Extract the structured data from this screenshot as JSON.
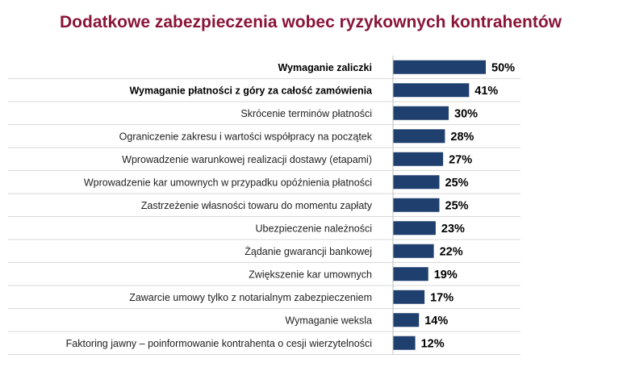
{
  "title": "Dodatkowe zabezpieczenia wobec ryzykownych kontrahentów",
  "colors": {
    "title": "#8a1538",
    "bar": "#1f3f6e",
    "grid": "#d9d9d9"
  },
  "chart_data": {
    "type": "bar",
    "orientation": "horizontal",
    "title": "Dodatkowe zabezpieczenia wobec ryzykownych kontrahentów",
    "xlabel": "",
    "ylabel": "",
    "xlim": [
      0,
      100
    ],
    "value_suffix": "%",
    "bold_categories": [
      "Wymaganie zaliczki",
      "Wymaganie płatności z góry za całość zamówienia"
    ],
    "categories": [
      "Wymaganie zaliczki",
      "Wymaganie płatności z góry za całość zamówienia",
      "Skrócenie terminów płatności",
      "Ograniczenie zakresu i wartości współpracy na początek",
      "Wprowadzenie warunkowej realizacji dostawy (etapami)",
      "Wprowadzenie kar umownych w przypadku opóźnienia płatności",
      "Zastrzeżenie własności towaru do momentu zapłaty",
      "Ubezpieczenie należności",
      "Żądanie gwarancji bankowej",
      "Zwiększenie kar umownych",
      "Zawarcie umowy tylko z notarialnym zabezpieczeniem",
      "Wymaganie weksla",
      "Faktoring jawny – poinformowanie kontrahenta o cesji wierzytelności"
    ],
    "values": [
      50,
      41,
      30,
      28,
      27,
      25,
      25,
      23,
      22,
      19,
      17,
      14,
      12
    ],
    "labels": [
      "50%",
      "41%",
      "30%",
      "28%",
      "27%",
      "25%",
      "25%",
      "23%",
      "22%",
      "19%",
      "17%",
      "14%",
      "12%"
    ],
    "grid": false,
    "legend": "none"
  }
}
